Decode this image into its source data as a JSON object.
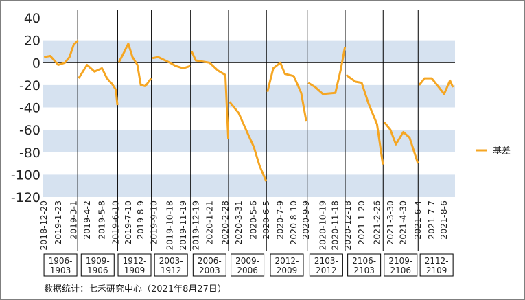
{
  "chart_data": {
    "type": "line",
    "ylim": [
      -120,
      40
    ],
    "yticks": [
      40,
      20,
      0,
      -20,
      -40,
      -60,
      -80,
      -100,
      -120
    ],
    "bands": [
      [
        0,
        20
      ],
      [
        -40,
        -20
      ],
      [
        -80,
        -60
      ],
      [
        -120,
        -100
      ]
    ],
    "colors": {
      "line": "#F5A623",
      "band": "#D6E2F0",
      "divider": "#000000"
    },
    "legend_position": "right",
    "x_tick_labels": [
      "2018-12-20",
      "2019-1-23",
      "2019-3-1",
      "2019-4-2",
      "2019-5-8",
      "2019-6-10",
      "2019-7-10",
      "2019-8-9",
      "2019-9-10",
      "2019-10-18",
      "2019-11-19",
      "2019-12-19",
      "2020-1-21",
      "2020-2-28",
      "2020-3-31",
      "2020-5-6",
      "2020-6-5",
      "2020-7-9",
      "2020-8-10",
      "2020-9-9",
      "2020-10-19",
      "2020-11-18",
      "2020-12-18",
      "2021-1-20",
      "2021-2-26",
      "2021-3-30",
      "2021-4-30",
      "2021-6-4",
      "2021-7-7",
      "2021-8-6"
    ],
    "segments": [
      {
        "label_line1": "1906-",
        "label_line2": "1903",
        "x": [
          "2018-12-20",
          "2019-1-4",
          "2019-1-23",
          "2019-2-8",
          "2019-2-19",
          "2019-3-1",
          "2019-3-12"
        ],
        "values": [
          5,
          6,
          -2,
          0,
          5,
          16,
          20
        ]
      },
      {
        "label_line1": "1909-",
        "label_line2": "1906",
        "x": [
          "2019-3-13",
          "2019-4-2",
          "2019-4-20",
          "2019-5-8",
          "2019-5-20",
          "2019-6-1",
          "2019-6-10",
          "2019-6-14"
        ],
        "values": [
          -14,
          -2,
          -8,
          -5,
          -14,
          -19,
          -24,
          -38
        ]
      },
      {
        "label_line1": "1912-",
        "label_line2": "1909",
        "x": [
          "2019-6-17",
          "2019-7-1",
          "2019-7-10",
          "2019-7-20",
          "2019-8-1",
          "2019-8-9",
          "2019-8-20",
          "2019-9-3"
        ],
        "values": [
          0,
          10,
          17,
          5,
          -2,
          -20,
          -21,
          -14
        ]
      },
      {
        "label_line1": "2003-",
        "label_line2": "1912",
        "x": [
          "2019-9-6",
          "2019-9-20",
          "2019-10-18",
          "2019-11-1",
          "2019-11-19",
          "2019-12-6"
        ],
        "values": [
          4,
          5,
          0,
          -3,
          -5,
          -3
        ]
      },
      {
        "label_line1": "2006-",
        "label_line2": "2003",
        "x": [
          "2019-12-9",
          "2019-12-19",
          "2020-1-21",
          "2020-2-10",
          "2020-2-28",
          "2020-3-6"
        ],
        "values": [
          10,
          2,
          0,
          -7,
          -11,
          -68
        ]
      },
      {
        "label_line1": "2009-",
        "label_line2": "2006",
        "x": [
          "2020-3-9",
          "2020-3-31",
          "2020-4-20",
          "2020-5-6",
          "2020-5-20",
          "2020-6-5"
        ],
        "values": [
          -35,
          -45,
          -62,
          -75,
          -92,
          -106
        ]
      },
      {
        "label_line1": "2012-",
        "label_line2": "2009",
        "x": [
          "2020-6-8",
          "2020-6-22",
          "2020-7-9",
          "2020-7-20",
          "2020-8-10",
          "2020-8-28",
          "2020-9-9"
        ],
        "values": [
          -26,
          -5,
          0,
          -10,
          -12,
          -27,
          -52
        ]
      },
      {
        "label_line1": "2103-",
        "label_line2": "2012",
        "x": [
          "2020-9-14",
          "2020-10-1",
          "2020-10-19",
          "2020-11-18",
          "2020-12-1",
          "2020-12-11"
        ],
        "values": [
          -18,
          -22,
          -28,
          -27,
          -6,
          14
        ]
      },
      {
        "label_line1": "2106-",
        "label_line2": "2103",
        "x": [
          "2020-12-14",
          "2021-1-5",
          "2021-1-20",
          "2021-2-5",
          "2021-2-26",
          "2021-3-12"
        ],
        "values": [
          -11,
          -17,
          -18,
          -36,
          -55,
          -91
        ]
      },
      {
        "label_line1": "2109-",
        "label_line2": "2106",
        "x": [
          "2021-3-15",
          "2021-3-30",
          "2021-4-12",
          "2021-4-30",
          "2021-5-15",
          "2021-6-4"
        ],
        "values": [
          -53,
          -60,
          -73,
          -62,
          -67,
          -90
        ]
      },
      {
        "label_line1": "2112-",
        "label_line2": "2109",
        "x": [
          "2021-6-7",
          "2021-6-20",
          "2021-7-7",
          "2021-7-20",
          "2021-8-6",
          "2021-8-20",
          "2021-8-27"
        ],
        "values": [
          -20,
          -14,
          -14,
          -20,
          -28,
          -16,
          -22
        ]
      }
    ],
    "series": [
      {
        "name": "基差"
      }
    ]
  },
  "source": "数据统计：七禾研究中心（2021年8月27日）"
}
